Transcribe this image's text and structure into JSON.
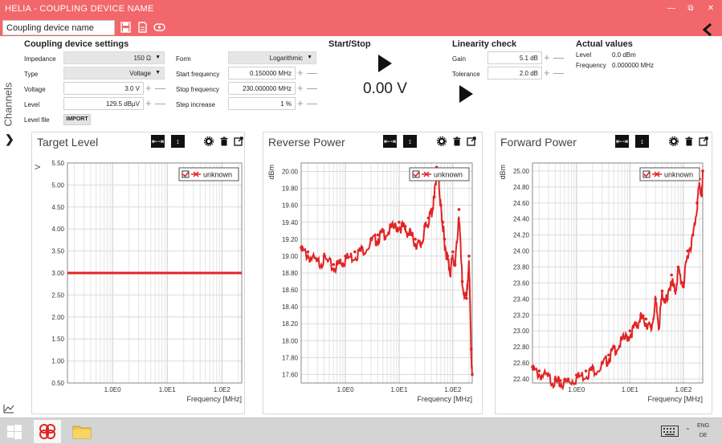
{
  "app": {
    "title": "HELIA - COUPLING DEVICE NAME",
    "device_name": "Coupling device name"
  },
  "sidebar": {
    "label": "Channels"
  },
  "coupling": {
    "title": "Coupling device settings",
    "impedance_label": "Impedance",
    "impedance_value": "150 Ω",
    "type_label": "Type",
    "type_value": "Voltage",
    "voltage_label": "Voltage",
    "voltage_value": "3.0 V",
    "level_label": "Level",
    "level_value": "129.5 dBµV",
    "levelfile_label": "Level file",
    "import_label": "IMPORT",
    "form_label": "Form",
    "form_value": "Logarithmic",
    "start_label": "Start frequency",
    "start_value": "0.150000 MHz",
    "stop_label": "Stop frequency",
    "stop_value": "230.000000 MHz",
    "step_label": "Step increase",
    "step_value": "1 %"
  },
  "startstop": {
    "title": "Start/Stop",
    "voltage": "0.00 V"
  },
  "linearity": {
    "title": "Linearity check",
    "gain_label": "Gain",
    "gain_value": "5.1 dB",
    "tol_label": "Tolerance",
    "tol_value": "2.0 dB"
  },
  "actual": {
    "title": "Actual values",
    "level_label": "Level",
    "level_value": "0.0 dBm",
    "freq_label": "Frequency",
    "freq_value": "0.000000 MHz"
  },
  "taskbar": {
    "lang1": "ENG",
    "lang2": "DE"
  },
  "colors": {
    "accent": "#f1676b",
    "series": "#e02424"
  },
  "chart_data": [
    {
      "type": "line",
      "title": "Target Level",
      "ylabel": "V",
      "xlabel": "Frequency [MHz]",
      "xscale": "log",
      "xlim": [
        0.15,
        230
      ],
      "ylim": [
        0.5,
        5.5
      ],
      "xticks": [
        "1.0E0",
        "1.0E1",
        "1.0E2"
      ],
      "yticks": [
        "0.50",
        "1.00",
        "1.50",
        "2.00",
        "2.50",
        "3.00",
        "3.50",
        "4.00",
        "4.50",
        "5.00",
        "5.50"
      ],
      "legend": "top-right",
      "grid": true,
      "series": [
        {
          "name": "unknown",
          "x": [
            0.15,
            230
          ],
          "y": [
            3.0,
            3.0
          ]
        }
      ]
    },
    {
      "type": "line",
      "title": "Reverse Power",
      "ylabel": "dBm",
      "xlabel": "Frequency [MHz]",
      "xscale": "log",
      "xlim": [
        0.15,
        230
      ],
      "ylim": [
        17.5,
        20.1
      ],
      "xticks": [
        "1.0E0",
        "1.0E1",
        "1.0E2"
      ],
      "yticks": [
        "17.60",
        "17.80",
        "18.00",
        "18.20",
        "18.40",
        "18.60",
        "18.80",
        "19.00",
        "19.20",
        "19.40",
        "19.60",
        "19.80",
        "20.00"
      ],
      "legend": "top-right",
      "grid": true,
      "series": [
        {
          "name": "unknown",
          "x": [
            0.15,
            0.2,
            0.3,
            0.4,
            0.6,
            0.8,
            1.0,
            1.5,
            2,
            3,
            4,
            5,
            7,
            10,
            13,
            16,
            20,
            25,
            30,
            35,
            40,
            45,
            50,
            55,
            60,
            65,
            70,
            80,
            90,
            100,
            110,
            130,
            150,
            180,
            200,
            220,
            230
          ],
          "y": [
            19.1,
            19.05,
            18.95,
            19.0,
            18.9,
            18.95,
            19.0,
            19.05,
            19.1,
            19.2,
            19.25,
            19.3,
            19.35,
            19.4,
            19.35,
            19.3,
            19.2,
            19.15,
            19.35,
            19.45,
            19.55,
            19.7,
            20.05,
            19.9,
            19.6,
            19.4,
            19.2,
            19.0,
            18.85,
            19.05,
            18.9,
            19.55,
            18.7,
            18.5,
            19.0,
            17.9,
            17.6
          ]
        }
      ]
    },
    {
      "type": "line",
      "title": "Forward Power",
      "ylabel": "dBm",
      "xlabel": "Frequency [MHz]",
      "xscale": "log",
      "xlim": [
        0.15,
        230
      ],
      "ylim": [
        22.35,
        25.1
      ],
      "xticks": [
        "1.0E0",
        "1.0E1",
        "1.0E2"
      ],
      "yticks": [
        "22.40",
        "22.60",
        "22.80",
        "23.00",
        "23.20",
        "23.40",
        "23.60",
        "23.80",
        "24.00",
        "24.20",
        "24.40",
        "24.60",
        "24.80",
        "25.00"
      ],
      "legend": "top-right",
      "grid": true,
      "series": [
        {
          "name": "unknown",
          "x": [
            0.15,
            0.2,
            0.3,
            0.4,
            0.5,
            0.7,
            1.0,
            1.5,
            2,
            3,
            4,
            5,
            7,
            10,
            13,
            16,
            20,
            25,
            30,
            35,
            40,
            50,
            60,
            70,
            80,
            100,
            120,
            150,
            180,
            200,
            220,
            230
          ],
          "y": [
            22.55,
            22.5,
            22.45,
            22.4,
            22.38,
            22.4,
            22.45,
            22.5,
            22.55,
            22.6,
            22.7,
            22.8,
            22.9,
            23.0,
            23.1,
            23.2,
            23.15,
            23.05,
            23.4,
            23.1,
            23.5,
            23.4,
            23.7,
            23.5,
            23.8,
            23.6,
            24.0,
            24.2,
            24.6,
            24.9,
            24.7,
            25.0
          ]
        }
      ]
    }
  ]
}
